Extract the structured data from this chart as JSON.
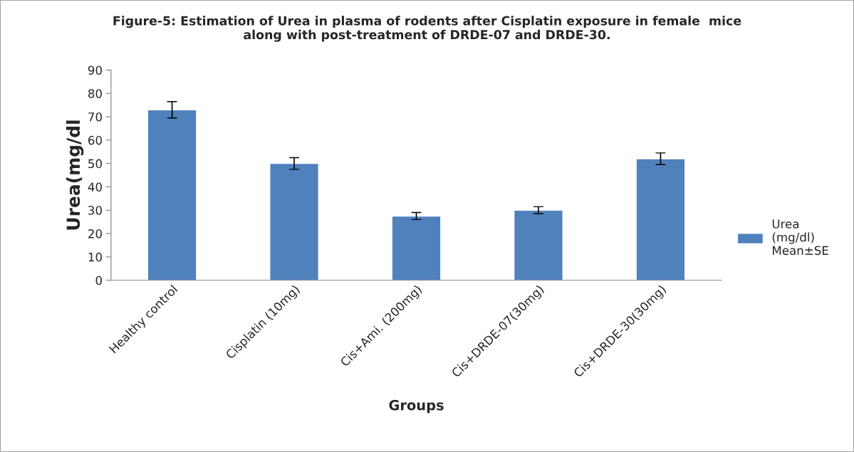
{
  "chart_data": {
    "type": "bar",
    "title": "Figure-5: Estimation of Urea in plasma of rodents after Cisplatin exposure in female  mice\nalong with post-treatment of DRDE-07 and DRDE-30.",
    "xlabel": "Groups",
    "ylabel": "Urea(mg/dl",
    "categories": [
      "Healthy control",
      "Cisplatin (10mg)",
      "Cis+Ami. (200mg)",
      "Cis+DRDE-07(30mg)",
      "Cis+DRDE-30(30mg)"
    ],
    "series": [
      {
        "name": "Urea\n(mg/dl)\nMean±SE",
        "color": "#4f81bd",
        "values": [
          73,
          50,
          27.5,
          30,
          52
        ],
        "errors": [
          3.5,
          2.5,
          1.5,
          1.5,
          2.5
        ]
      }
    ],
    "ylim": [
      0,
      90
    ],
    "yticks": [
      0,
      10,
      20,
      30,
      40,
      50,
      60,
      70,
      80,
      90
    ],
    "grid": false,
    "legend": "right"
  }
}
